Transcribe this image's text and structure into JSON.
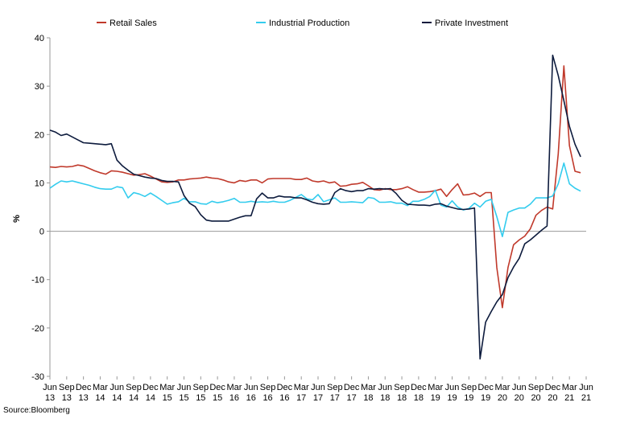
{
  "chart_data": {
    "type": "line",
    "ylabel": "%",
    "ylim": [
      -30,
      40
    ],
    "yticks": [
      40,
      30,
      20,
      10,
      0,
      -10,
      -20,
      -30
    ],
    "xtick_labels": [
      [
        "Jun",
        "13"
      ],
      [
        "Sep",
        "13"
      ],
      [
        "Dec",
        "13"
      ],
      [
        "Mar",
        "14"
      ],
      [
        "Jun",
        "14"
      ],
      [
        "Sep",
        "14"
      ],
      [
        "Dec",
        "14"
      ],
      [
        "Mar",
        "15"
      ],
      [
        "Jun",
        "15"
      ],
      [
        "Sep",
        "15"
      ],
      [
        "Dec",
        "15"
      ],
      [
        "Mar",
        "16"
      ],
      [
        "Jun",
        "16"
      ],
      [
        "Sep",
        "16"
      ],
      [
        "Dec",
        "16"
      ],
      [
        "Mar",
        "17"
      ],
      [
        "Jun",
        "17"
      ],
      [
        "Sep",
        "17"
      ],
      [
        "Dec",
        "17"
      ],
      [
        "Mar",
        "18"
      ],
      [
        "Jun",
        "18"
      ],
      [
        "Sep",
        "18"
      ],
      [
        "Dec",
        "18"
      ],
      [
        "Mar",
        "19"
      ],
      [
        "Jun",
        "19"
      ],
      [
        "Sep",
        "19"
      ],
      [
        "Dec",
        "19"
      ],
      [
        "Mar",
        "20"
      ],
      [
        "Jun",
        "20"
      ],
      [
        "Sep",
        "20"
      ],
      [
        "Dec",
        "20"
      ],
      [
        "Mar",
        "21"
      ],
      [
        "Jun",
        "21"
      ]
    ],
    "legend_position": "top",
    "series": [
      {
        "name": "Retail Sales",
        "color": "#c0392b",
        "points": [
          [
            0,
            13.3
          ],
          [
            1,
            13.2
          ],
          [
            2,
            13.4
          ],
          [
            3,
            13.3
          ],
          [
            4,
            13.4
          ],
          [
            5,
            13.7
          ],
          [
            6,
            13.5
          ],
          [
            7,
            13.0
          ],
          [
            8,
            12.5
          ],
          [
            9,
            12.1
          ],
          [
            10,
            11.8
          ],
          [
            11,
            12.5
          ],
          [
            12,
            12.4
          ],
          [
            13,
            12.2
          ],
          [
            14,
            11.9
          ],
          [
            15,
            11.6
          ],
          [
            16,
            11.7
          ],
          [
            17,
            11.9
          ],
          [
            18,
            11.4
          ],
          [
            19,
            10.8
          ],
          [
            20,
            10.2
          ],
          [
            21,
            10.1
          ],
          [
            22,
            10.2
          ],
          [
            23,
            10.6
          ],
          [
            24,
            10.6
          ],
          [
            25,
            10.8
          ],
          [
            26,
            10.9
          ],
          [
            27,
            11.0
          ],
          [
            28,
            11.2
          ],
          [
            29,
            11.0
          ],
          [
            30,
            10.9
          ],
          [
            31,
            10.6
          ],
          [
            32,
            10.2
          ],
          [
            33,
            10.0
          ],
          [
            34,
            10.5
          ],
          [
            35,
            10.3
          ],
          [
            36,
            10.6
          ],
          [
            37,
            10.6
          ],
          [
            38,
            10.0
          ],
          [
            39,
            10.8
          ],
          [
            40,
            10.9
          ],
          [
            41,
            10.9
          ],
          [
            42,
            10.9
          ],
          [
            43,
            10.9
          ],
          [
            44,
            10.7
          ],
          [
            45,
            10.7
          ],
          [
            46,
            11.0
          ],
          [
            47,
            10.4
          ],
          [
            48,
            10.2
          ],
          [
            49,
            10.4
          ],
          [
            50,
            10.0
          ],
          [
            51,
            10.2
          ],
          [
            52,
            9.3
          ],
          [
            53,
            9.4
          ],
          [
            54,
            9.7
          ],
          [
            55,
            9.8
          ],
          [
            56,
            10.1
          ],
          [
            57,
            9.4
          ],
          [
            58,
            8.6
          ],
          [
            59,
            8.5
          ],
          [
            60,
            8.8
          ],
          [
            61,
            8.6
          ],
          [
            62,
            8.6
          ],
          [
            63,
            8.8
          ],
          [
            64,
            9.2
          ],
          [
            65,
            8.6
          ],
          [
            66,
            8.1
          ],
          [
            67,
            8.1
          ],
          [
            68,
            8.2
          ],
          [
            69,
            8.4
          ],
          [
            70,
            8.7
          ],
          [
            71,
            7.2
          ],
          [
            72,
            8.6
          ],
          [
            73,
            9.8
          ],
          [
            74,
            7.5
          ],
          [
            75,
            7.6
          ],
          [
            76,
            7.9
          ],
          [
            77,
            7.2
          ],
          [
            78,
            8.0
          ],
          [
            79,
            8.0
          ],
          [
            80,
            -7.5
          ],
          [
            81,
            -15.8
          ],
          [
            82,
            -7.5
          ],
          [
            83,
            -2.8
          ],
          [
            84,
            -1.8
          ],
          [
            85,
            -1.0
          ],
          [
            86,
            0.5
          ],
          [
            87,
            3.3
          ],
          [
            88,
            4.3
          ],
          [
            89,
            5.0
          ],
          [
            90,
            4.6
          ],
          [
            91,
            16.0
          ],
          [
            92,
            34.2
          ],
          [
            93,
            17.7
          ],
          [
            94,
            12.4
          ],
          [
            95,
            12.1
          ]
        ]
      },
      {
        "name": "Industrial Production",
        "color": "#33ccee",
        "points": [
          [
            0,
            8.9
          ],
          [
            1,
            9.7
          ],
          [
            2,
            10.4
          ],
          [
            3,
            10.2
          ],
          [
            4,
            10.4
          ],
          [
            5,
            10.1
          ],
          [
            6,
            9.8
          ],
          [
            7,
            9.5
          ],
          [
            8,
            9.1
          ],
          [
            9,
            8.8
          ],
          [
            10,
            8.7
          ],
          [
            11,
            8.7
          ],
          [
            12,
            9.2
          ],
          [
            13,
            9.0
          ],
          [
            14,
            6.9
          ],
          [
            15,
            8.0
          ],
          [
            16,
            7.7
          ],
          [
            17,
            7.2
          ],
          [
            18,
            7.9
          ],
          [
            19,
            7.2
          ],
          [
            20,
            6.4
          ],
          [
            21,
            5.6
          ],
          [
            22,
            5.9
          ],
          [
            23,
            6.1
          ],
          [
            24,
            6.8
          ],
          [
            25,
            6.1
          ],
          [
            26,
            6.1
          ],
          [
            27,
            5.7
          ],
          [
            28,
            5.6
          ],
          [
            29,
            6.2
          ],
          [
            30,
            5.9
          ],
          [
            31,
            6.1
          ],
          [
            32,
            6.4
          ],
          [
            33,
            6.8
          ],
          [
            34,
            6.0
          ],
          [
            35,
            6.0
          ],
          [
            36,
            6.2
          ],
          [
            37,
            6.0
          ],
          [
            38,
            6.1
          ],
          [
            39,
            6.0
          ],
          [
            40,
            6.2
          ],
          [
            41,
            6.0
          ],
          [
            42,
            6.0
          ],
          [
            43,
            6.4
          ],
          [
            44,
            7.0
          ],
          [
            45,
            7.6
          ],
          [
            46,
            6.7
          ],
          [
            47,
            6.5
          ],
          [
            48,
            7.6
          ],
          [
            49,
            6.1
          ],
          [
            50,
            6.5
          ],
          [
            51,
            6.9
          ],
          [
            52,
            6.0
          ],
          [
            53,
            6.0
          ],
          [
            54,
            6.1
          ],
          [
            55,
            6.0
          ],
          [
            56,
            5.9
          ],
          [
            57,
            7.0
          ],
          [
            58,
            6.8
          ],
          [
            59,
            6.0
          ],
          [
            60,
            6.0
          ],
          [
            61,
            6.1
          ],
          [
            62,
            5.8
          ],
          [
            63,
            5.8
          ],
          [
            64,
            5.3
          ],
          [
            65,
            6.2
          ],
          [
            66,
            6.2
          ],
          [
            67,
            6.6
          ],
          [
            68,
            7.2
          ],
          [
            69,
            8.5
          ],
          [
            70,
            5.4
          ],
          [
            71,
            5.0
          ],
          [
            72,
            6.3
          ],
          [
            73,
            5.0
          ],
          [
            74,
            4.4
          ],
          [
            75,
            4.7
          ],
          [
            76,
            5.8
          ],
          [
            77,
            5.0
          ],
          [
            78,
            6.2
          ],
          [
            79,
            6.6
          ],
          [
            80,
            3.0
          ],
          [
            81,
            -1.1
          ],
          [
            82,
            3.9
          ],
          [
            83,
            4.4
          ],
          [
            84,
            4.8
          ],
          [
            85,
            4.8
          ],
          [
            86,
            5.6
          ],
          [
            87,
            6.9
          ],
          [
            88,
            6.9
          ],
          [
            89,
            6.9
          ],
          [
            90,
            7.3
          ],
          [
            91,
            9.8
          ],
          [
            92,
            14.1
          ],
          [
            93,
            9.8
          ],
          [
            94,
            8.9
          ],
          [
            95,
            8.3
          ]
        ]
      },
      {
        "name": "Private Investment",
        "color": "#0d1b3d",
        "points": [
          [
            0,
            20.9
          ],
          [
            1,
            20.5
          ],
          [
            2,
            19.8
          ],
          [
            3,
            20.1
          ],
          [
            4,
            19.5
          ],
          [
            5,
            18.9
          ],
          [
            6,
            18.3
          ],
          [
            7,
            18.2
          ],
          [
            8,
            18.1
          ],
          [
            9,
            18.0
          ],
          [
            10,
            17.9
          ],
          [
            11,
            18.1
          ],
          [
            12,
            14.7
          ],
          [
            13,
            13.5
          ],
          [
            14,
            12.6
          ],
          [
            15,
            11.8
          ],
          [
            16,
            11.5
          ],
          [
            17,
            11.2
          ],
          [
            18,
            11.0
          ],
          [
            19,
            10.9
          ],
          [
            20,
            10.5
          ],
          [
            21,
            10.3
          ],
          [
            22,
            10.3
          ],
          [
            23,
            10.2
          ],
          [
            24,
            7.4
          ],
          [
            25,
            5.8
          ],
          [
            26,
            5.1
          ],
          [
            27,
            3.4
          ],
          [
            28,
            2.3
          ],
          [
            29,
            2.1
          ],
          [
            30,
            2.1
          ],
          [
            31,
            2.1
          ],
          [
            32,
            2.1
          ],
          [
            33,
            2.5
          ],
          [
            34,
            2.9
          ],
          [
            35,
            3.2
          ],
          [
            36,
            3.2
          ],
          [
            37,
            6.7
          ],
          [
            38,
            7.9
          ],
          [
            39,
            6.9
          ],
          [
            40,
            6.9
          ],
          [
            41,
            7.3
          ],
          [
            42,
            7.1
          ],
          [
            43,
            7.1
          ],
          [
            44,
            6.9
          ],
          [
            45,
            6.9
          ],
          [
            46,
            6.5
          ],
          [
            47,
            6.0
          ],
          [
            48,
            5.7
          ],
          [
            49,
            5.6
          ],
          [
            50,
            5.7
          ],
          [
            51,
            8.0
          ],
          [
            52,
            8.8
          ],
          [
            53,
            8.4
          ],
          [
            54,
            8.2
          ],
          [
            55,
            8.4
          ],
          [
            56,
            8.4
          ],
          [
            57,
            8.8
          ],
          [
            58,
            8.7
          ],
          [
            59,
            8.8
          ],
          [
            60,
            8.7
          ],
          [
            61,
            8.8
          ],
          [
            62,
            7.8
          ],
          [
            63,
            6.4
          ],
          [
            64,
            5.6
          ],
          [
            65,
            5.5
          ],
          [
            66,
            5.4
          ],
          [
            67,
            5.4
          ],
          [
            68,
            5.3
          ],
          [
            69,
            5.6
          ],
          [
            70,
            5.7
          ],
          [
            71,
            5.2
          ],
          [
            72,
            4.9
          ],
          [
            73,
            4.6
          ],
          [
            74,
            4.5
          ],
          [
            75,
            4.6
          ],
          [
            76,
            4.8
          ],
          [
            77,
            -26.4
          ],
          [
            78,
            -18.8
          ],
          [
            79,
            -16.6
          ],
          [
            80,
            -14.6
          ],
          [
            81,
            -13.1
          ],
          [
            82,
            -9.6
          ],
          [
            83,
            -7.4
          ],
          [
            84,
            -5.6
          ],
          [
            85,
            -2.6
          ],
          [
            86,
            -1.8
          ],
          [
            87,
            -0.8
          ],
          [
            88,
            0.2
          ],
          [
            89,
            1.1
          ],
          [
            90,
            36.4
          ],
          [
            91,
            32.2
          ],
          [
            92,
            27.0
          ],
          [
            93,
            21.7
          ],
          [
            94,
            18.0
          ],
          [
            95,
            15.4
          ]
        ]
      }
    ]
  },
  "source_text": "Source:Bloomberg"
}
